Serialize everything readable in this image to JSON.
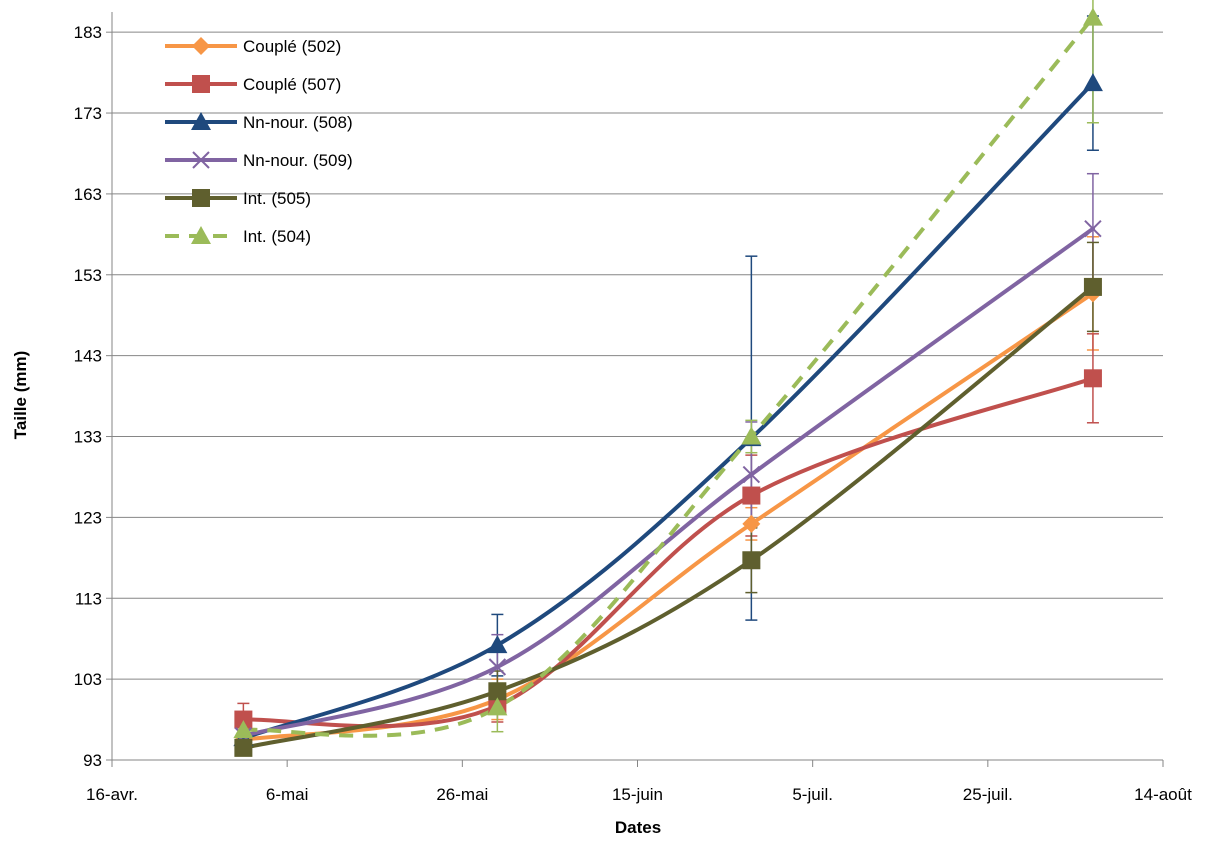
{
  "chart_data": {
    "type": "line",
    "title": "",
    "xlabel": "Dates",
    "ylabel": "Taille (mm)",
    "x_axis": {
      "ticks": [
        "16-avr.",
        "6-mai",
        "26-mai",
        "15-juin",
        "5-juil.",
        "25-juil.",
        "14-août"
      ],
      "tick_dates": [
        "2012-04-16",
        "2012-05-06",
        "2012-05-26",
        "2012-06-15",
        "2012-07-05",
        "2012-07-25",
        "2012-08-14"
      ],
      "range": [
        "2012-04-16",
        "2012-08-14"
      ]
    },
    "y_axis": {
      "ticks": [
        93,
        103,
        113,
        123,
        133,
        143,
        153,
        163,
        173,
        183
      ],
      "ylim": [
        93,
        185
      ]
    },
    "grid": "horizontal",
    "legend_position": "top-left",
    "series": [
      {
        "name": "Couplé (502)",
        "color": "#F79646",
        "marker": "diamond",
        "dashed": false,
        "x": [
          "2012-05-01",
          "2012-05-30",
          "2012-06-28",
          "2012-08-06"
        ],
        "y": [
          95.5,
          100.5,
          122.2,
          150.7
        ],
        "err": [
          0,
          2.5,
          2.0,
          7.0
        ]
      },
      {
        "name": "Couplé (507)",
        "color": "#C0504D",
        "marker": "square",
        "dashed": false,
        "x": [
          "2012-05-01",
          "2012-05-30",
          "2012-06-28",
          "2012-08-06"
        ],
        "y": [
          98.0,
          99.7,
          125.7,
          140.2
        ],
        "err": [
          2.0,
          2.0,
          5.0,
          5.5
        ]
      },
      {
        "name": "Nn-nour. (508)",
        "color": "#1F497D",
        "marker": "triangle",
        "dashed": false,
        "x": [
          "2012-05-01",
          "2012-05-30",
          "2012-06-28",
          "2012-08-06"
        ],
        "y": [
          95.7,
          107.2,
          132.8,
          176.7
        ],
        "err": [
          0,
          3.8,
          22.5,
          8.3
        ]
      },
      {
        "name": "Nn-nour. (509)",
        "color": "#8064A2",
        "marker": "x",
        "dashed": false,
        "x": [
          "2012-05-01",
          "2012-05-30",
          "2012-06-28",
          "2012-08-06"
        ],
        "y": [
          96.0,
          104.5,
          128.3,
          158.7
        ],
        "err": [
          0,
          4.0,
          6.5,
          6.8
        ]
      },
      {
        "name": "Int. (505)",
        "color": "#5F5F2E",
        "marker": "square",
        "dashed": false,
        "x": [
          "2012-05-01",
          "2012-05-30",
          "2012-06-28",
          "2012-08-06"
        ],
        "y": [
          94.5,
          101.5,
          117.7,
          151.5
        ],
        "err": [
          0,
          2.5,
          4.0,
          5.5
        ]
      },
      {
        "name": "Int. (504)",
        "color": "#9BBB59",
        "marker": "triangle",
        "dashed": true,
        "x": [
          "2012-05-01",
          "2012-05-30",
          "2012-06-28",
          "2012-08-06"
        ],
        "y": [
          96.7,
          99.5,
          133.0,
          184.8
        ],
        "err": [
          0,
          3.0,
          2.0,
          13.0
        ]
      }
    ]
  }
}
